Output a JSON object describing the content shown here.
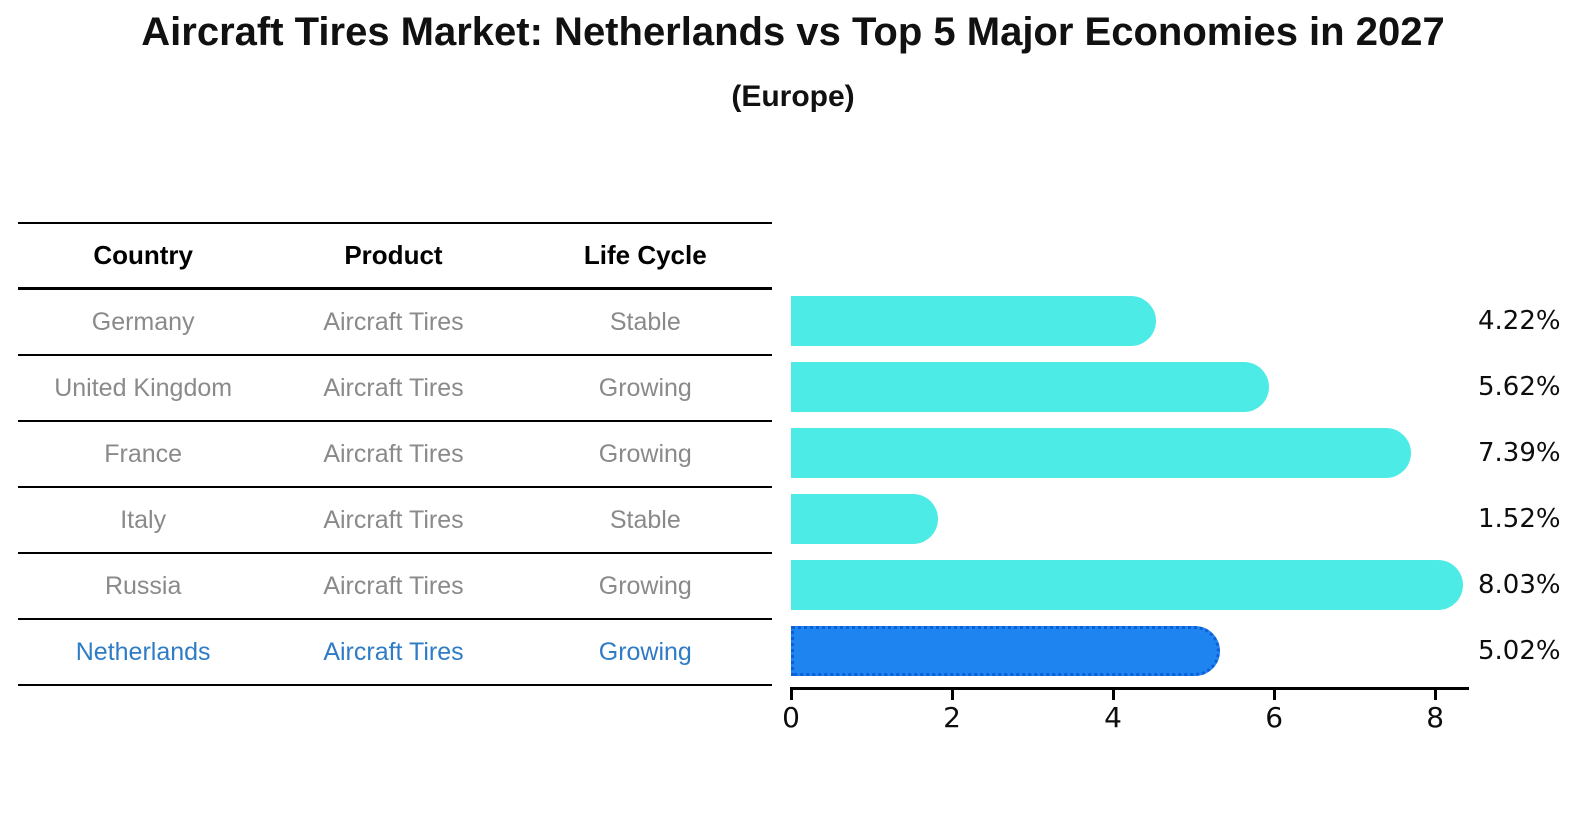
{
  "title": "Aircraft Tires Market: Netherlands vs Top 5 Major Economies in 2027",
  "subtitle": "(Europe)",
  "table": {
    "headers": [
      "Country",
      "Product",
      "Life Cycle"
    ],
    "rows": [
      {
        "country": "Germany",
        "product": "Aircraft Tires",
        "life_cycle": "Stable",
        "highlight": false
      },
      {
        "country": "United Kingdom",
        "product": "Aircraft Tires",
        "life_cycle": "Growing",
        "highlight": false
      },
      {
        "country": "France",
        "product": "Aircraft Tires",
        "life_cycle": "Growing",
        "highlight": false
      },
      {
        "country": "Italy",
        "product": "Aircraft Tires",
        "life_cycle": "Stable",
        "highlight": false
      },
      {
        "country": "Russia",
        "product": "Aircraft Tires",
        "life_cycle": "Growing",
        "highlight": false
      },
      {
        "country": "Netherlands",
        "product": "Aircraft Tires",
        "life_cycle": "Growing",
        "highlight": true
      }
    ]
  },
  "chart_data": {
    "type": "bar",
    "orientation": "horizontal",
    "title": "Aircraft Tires Market: Netherlands vs Top 5 Major Economies in 2027",
    "subtitle": "(Europe)",
    "categories": [
      "Germany",
      "United Kingdom",
      "France",
      "Italy",
      "Russia",
      "Netherlands"
    ],
    "values": [
      4.22,
      5.62,
      7.39,
      1.52,
      8.03,
      5.02
    ],
    "value_labels": [
      "4.22%",
      "5.62%",
      "7.39%",
      "1.52%",
      "8.03%",
      "5.02%"
    ],
    "unit": "%",
    "highlight_category": "Netherlands",
    "xticks": [
      0,
      2,
      4,
      6,
      8
    ],
    "xlim": [
      0,
      8.42
    ],
    "grid": false,
    "legend": false,
    "colors": {
      "bar": "#4debe6",
      "highlight_bar": "#1e84f0",
      "highlight_border": "#0c5fd8",
      "highlight_text": "#2f7cc6",
      "row_text": "#8a8a8a",
      "header_text": "#000000",
      "title_text": "#111111",
      "axis": "#000000"
    }
  }
}
